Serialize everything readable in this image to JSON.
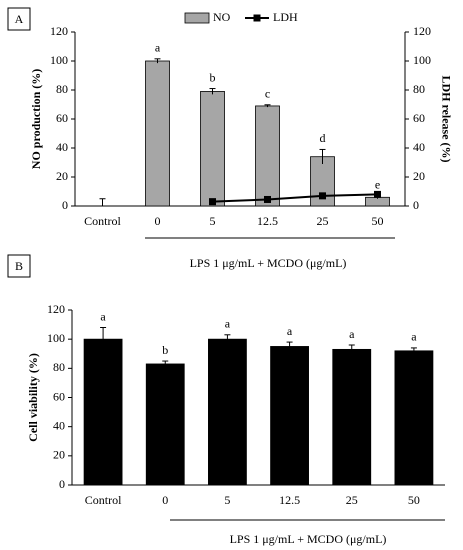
{
  "chart_data": [
    {
      "type": "bar",
      "panel": "A",
      "categories": [
        "Control",
        "0",
        "5",
        "12.5",
        "25",
        "50"
      ],
      "series": [
        {
          "name": "NO",
          "color": "#a6a6a6",
          "type": "bar",
          "values": [
            0,
            100,
            79,
            69,
            34,
            6
          ],
          "errors": [
            5,
            1.5,
            2,
            0.8,
            5,
            1
          ]
        },
        {
          "name": "LDH",
          "color": "#000000",
          "type": "line",
          "axis": "y2",
          "values": [
            null,
            null,
            3,
            4.5,
            7,
            8
          ]
        }
      ],
      "annotations": [
        null,
        "a",
        "b",
        "c",
        "d",
        "e"
      ],
      "ylabel": "NO production (%)",
      "y2label": "LDH release (%)",
      "xlabel": "LPS 1 μg/mL + MCDO (μg/mL)",
      "ylim": [
        0,
        120
      ],
      "yticks": [
        0,
        20,
        40,
        60,
        80,
        100,
        120
      ],
      "y2lim": [
        0,
        120
      ],
      "y2ticks": [
        0,
        20,
        40,
        60,
        80,
        100,
        120
      ],
      "legend": "top"
    },
    {
      "type": "bar",
      "panel": "B",
      "categories": [
        "Control",
        "0",
        "5",
        "12.5",
        "25",
        "50"
      ],
      "values": [
        100,
        83,
        100,
        95,
        93,
        92
      ],
      "errors": [
        8,
        2,
        3,
        3,
        3,
        2
      ],
      "color": "#000000",
      "annotations": [
        "a",
        "b",
        "a",
        "a",
        "a",
        "a"
      ],
      "ylabel": "Cell viability (%)",
      "xlabel": "LPS 1 μg/mL + MCDO (μg/mL)",
      "ylim": [
        0,
        120
      ],
      "yticks": [
        0,
        20,
        40,
        60,
        80,
        100,
        120
      ]
    }
  ]
}
